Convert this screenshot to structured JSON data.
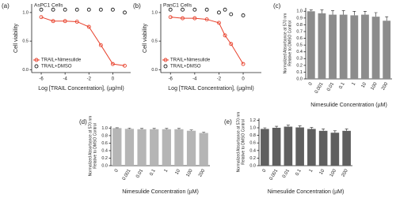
{
  "chart_data": [
    {
      "type": "scatter",
      "panel": "(a)",
      "title": "AsPC1 Cells",
      "xlabel": "Log [TRAIL Concentration], (µg/ml)",
      "ylabel": "Cell viability",
      "x": [
        -6,
        -5,
        -4,
        -3,
        -2,
        -1,
        0,
        1
      ],
      "series": [
        {
          "name": "TRAIL+Nimesulide",
          "color": "#e8412c",
          "line": true,
          "values": [
            0.92,
            0.85,
            0.85,
            0.84,
            0.75,
            0.43,
            0.1,
            0.07
          ]
        },
        {
          "name": "TRAIL+DMSO",
          "color": "#222222",
          "line": false,
          "values": [
            1.05,
            1.05,
            1.05,
            1.05,
            1.05,
            1.05,
            1.05,
            1.0
          ]
        }
      ],
      "xlim": [
        -6.8,
        1.5
      ],
      "xticks": [
        -6,
        -4,
        -2,
        0
      ],
      "ylim": [
        -0.05,
        1.15
      ],
      "yticks": [
        {
          "value": 0,
          "label": "0.0"
        },
        0.5,
        {
          "value": 1,
          "label": "1.0"
        }
      ],
      "legend": "lower left"
    },
    {
      "type": "scatter",
      "panel": "(b)",
      "title": "PanC1 Cells",
      "xlabel": "Log [TRAIL Concentration], (µg/ml)",
      "ylabel": "Cell viability",
      "x": [
        -6,
        -5,
        -4,
        -3,
        -2,
        -1.5,
        -1,
        0
      ],
      "series": [
        {
          "name": "TRAIL+Nimesulide",
          "color": "#e8412c",
          "line": true,
          "values": [
            0.92,
            0.9,
            0.9,
            0.88,
            0.82,
            0.6,
            0.45,
            0.1
          ]
        },
        {
          "name": "TRAIL+DMSO",
          "color": "#222222",
          "line": false,
          "values": [
            1.05,
            1.05,
            1.05,
            1.05,
            1.0,
            1.05,
            0.97,
            0.95
          ]
        }
      ],
      "xlim": [
        -6.8,
        1.5
      ],
      "xticks": [
        -6,
        -4,
        -2,
        0
      ],
      "ylim": [
        -0.05,
        1.15
      ],
      "yticks": [
        {
          "value": 0,
          "label": "0.0"
        },
        0.5,
        {
          "value": 1,
          "label": "1.0"
        }
      ],
      "legend": "lower left"
    },
    {
      "type": "bar",
      "panel": "(c)",
      "xlabel": "Nimesulide Concentration (µM)",
      "ylabel": [
        "Normalized Absorbance at 570 nm",
        "Relative to DMSO Control"
      ],
      "categories": [
        "0",
        "0.001",
        "0.01",
        "0.1",
        "1",
        "10",
        "100",
        "200"
      ],
      "values": [
        1.0,
        0.97,
        0.95,
        0.95,
        0.94,
        0.95,
        0.92,
        0.86
      ],
      "errors": [
        0.02,
        0.05,
        0.06,
        0.06,
        0.06,
        0.05,
        0.06,
        0.06
      ],
      "color": "#8c8c8c",
      "ylim": [
        0,
        1.05
      ],
      "yticks": [
        {
          "value": 0,
          "label": "0.0"
        },
        0.1,
        0.2,
        0.3,
        0.4,
        0.5,
        0.6,
        0.7,
        0.8,
        0.9,
        {
          "value": 1,
          "label": "1.0"
        }
      ]
    },
    {
      "type": "bar",
      "panel": "(d)",
      "xlabel": "Nimesulide Concentration (µM)",
      "ylabel": [
        "Normalized Absorbance at 570 nm",
        "Relative to DMSO Control"
      ],
      "categories": [
        "0",
        "0.001",
        "0.01",
        "0.1",
        "1",
        "10",
        "100",
        "200"
      ],
      "values": [
        1.0,
        0.98,
        0.97,
        0.97,
        0.97,
        0.97,
        0.93,
        0.87
      ],
      "errors": [
        0.01,
        0.02,
        0.02,
        0.02,
        0.02,
        0.02,
        0.02,
        0.02
      ],
      "color": "#b5b5b5",
      "ylim": [
        0,
        1.05
      ],
      "yticks": [
        {
          "value": 0,
          "label": "0.0"
        },
        0.2,
        0.4,
        0.6,
        0.8,
        {
          "value": 1,
          "label": "1.0"
        }
      ]
    },
    {
      "type": "bar",
      "panel": "(e)",
      "xlabel": "Nimesulide Concentration (µM)",
      "ylabel": [
        "Normalized Absorbance at 570 nm",
        "Relative to DMSO Control"
      ],
      "categories": [
        "0",
        "0.001",
        "0.01",
        "0.1",
        "1",
        "10",
        "100",
        "200"
      ],
      "values": [
        0.97,
        1.0,
        1.03,
        1.01,
        0.97,
        0.92,
        0.87,
        0.92
      ],
      "errors": [
        0.03,
        0.04,
        0.04,
        0.04,
        0.04,
        0.05,
        0.05,
        0.05
      ],
      "color": "#5f5f5f",
      "ylim": [
        0,
        1.25
      ],
      "yticks": [
        {
          "value": 0,
          "label": "0.0"
        },
        0.2,
        0.4,
        0.6,
        0.8,
        {
          "value": 1,
          "label": "1.0"
        },
        {
          "value": 1.2,
          "label": "1.2"
        }
      ]
    }
  ]
}
